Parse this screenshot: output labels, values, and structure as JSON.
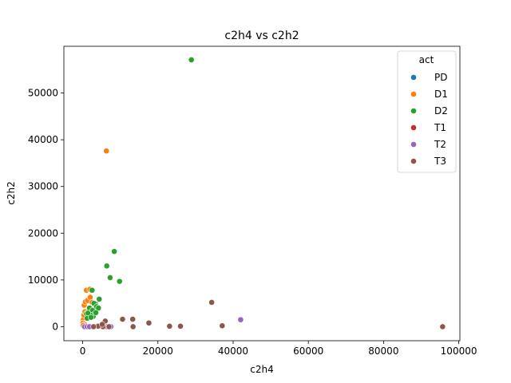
{
  "chart_data": {
    "type": "scatter",
    "title": "c2h4 vs c2h2",
    "xlabel": "c2h4",
    "ylabel": "c2h2",
    "xlim": [
      -5000,
      100300
    ],
    "ylim": [
      -3000,
      60000
    ],
    "xticks": [
      0,
      20000,
      40000,
      60000,
      80000,
      100000
    ],
    "xtick_labels": [
      "0",
      "20000",
      "40000",
      "60000",
      "80000",
      "100000"
    ],
    "yticks": [
      0,
      10000,
      20000,
      30000,
      40000,
      50000
    ],
    "ytick_labels": [
      "0",
      "10000",
      "20000",
      "30000",
      "40000",
      "50000"
    ],
    "grid": false,
    "legend": {
      "title": "act",
      "position": "top-right",
      "entries": [
        "PD",
        "D1",
        "D2",
        "T1",
        "T2",
        "T3"
      ]
    },
    "colors": {
      "PD": "#1f77b4",
      "D1": "#ff7f0e",
      "D2": "#2ca02c",
      "T1": "#d62728",
      "T2": "#9467bd",
      "T3": "#8c564b"
    },
    "series": [
      {
        "name": "PD",
        "points": [
          [
            0,
            0
          ],
          [
            50,
            10
          ],
          [
            150,
            20
          ],
          [
            300,
            5
          ]
        ]
      },
      {
        "name": "T1",
        "points": [
          [
            300,
            50
          ],
          [
            800,
            100
          ],
          [
            1200,
            30
          ]
        ]
      },
      {
        "name": "D1",
        "points": [
          [
            6300,
            37600
          ],
          [
            400,
            4600
          ],
          [
            700,
            5300
          ],
          [
            1000,
            7800
          ],
          [
            1900,
            8000
          ],
          [
            1300,
            5600
          ],
          [
            2000,
            6300
          ],
          [
            2500,
            5200
          ],
          [
            200,
            1500
          ],
          [
            100,
            800
          ],
          [
            300,
            2500
          ],
          [
            600,
            3200
          ],
          [
            500,
            500
          ],
          [
            150,
            300
          ]
        ]
      },
      {
        "name": "D2",
        "points": [
          [
            28900,
            57100
          ],
          [
            8400,
            16100
          ],
          [
            6400,
            13000
          ],
          [
            7300,
            10500
          ],
          [
            9800,
            9700
          ],
          [
            2500,
            7800
          ],
          [
            4400,
            5900
          ],
          [
            3400,
            4900
          ],
          [
            1800,
            4000
          ],
          [
            1000,
            2800
          ],
          [
            2600,
            3500
          ],
          [
            2800,
            2200
          ],
          [
            3000,
            5000
          ],
          [
            3700,
            4300
          ],
          [
            2100,
            2500
          ],
          [
            1400,
            2900
          ],
          [
            4200,
            4000
          ],
          [
            1200,
            1800
          ],
          [
            3500,
            3000
          ],
          [
            2200,
            2000
          ]
        ]
      },
      {
        "name": "T2",
        "points": [
          [
            42000,
            1500
          ],
          [
            500,
            0
          ],
          [
            1200,
            0
          ],
          [
            2200,
            0
          ],
          [
            3000,
            0
          ],
          [
            5800,
            0
          ],
          [
            6500,
            0
          ],
          [
            7500,
            0
          ],
          [
            1800,
            0
          ]
        ]
      },
      {
        "name": "T3",
        "points": [
          [
            95700,
            0
          ],
          [
            34300,
            5200
          ],
          [
            37100,
            200
          ],
          [
            26000,
            100
          ],
          [
            23100,
            100
          ],
          [
            17600,
            800
          ],
          [
            13300,
            1600
          ],
          [
            10600,
            1600
          ],
          [
            13400,
            0
          ],
          [
            6000,
            1200
          ],
          [
            5400,
            0
          ],
          [
            4100,
            100
          ],
          [
            2900,
            0
          ],
          [
            7000,
            0
          ],
          [
            5200,
            500
          ]
        ]
      }
    ]
  }
}
